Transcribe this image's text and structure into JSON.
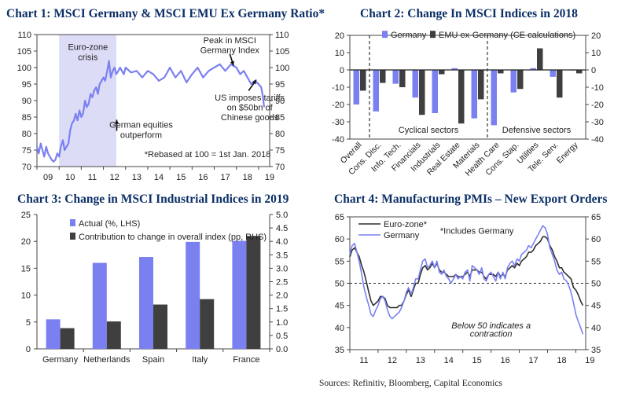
{
  "titles": {
    "c1": "Chart 1: MSCI Germany & MSCI EMU Ex Germany Ratio*",
    "c2": "Chart 2: Change In MSCI Indices in 2018",
    "c3": "Chart 3: Change in MSCI Industrial Indices in 2019",
    "c4": "Chart 4: Manufacturing PMIs – New Export Orders"
  },
  "sources": "Sources: Refinitiv, Bloomberg, Capital Economics",
  "colors": {
    "blue": "#7b80f0",
    "dark": "#3f3f3f",
    "line_blue": "#7b80f0",
    "line_dark": "#2f2f2f",
    "shade": "#dcdcf7",
    "title": "#0b2f66"
  },
  "chart_data": [
    {
      "id": "c1",
      "type": "line",
      "title": "Chart 1: MSCI Germany & MSCI EMU Ex Germany Ratio*",
      "xlim": [
        9,
        19.5
      ],
      "ylim": [
        70,
        110
      ],
      "x_ticks": [
        "09",
        "10",
        "11",
        "12",
        "13",
        "14",
        "15",
        "16",
        "17",
        "18",
        "19"
      ],
      "y_ticks": [
        70,
        75,
        80,
        85,
        90,
        95,
        100,
        105,
        110
      ],
      "shaded_region": {
        "from": 10,
        "to": 12.58
      },
      "series": [
        {
          "x": [
            9.0,
            9.08,
            9.17,
            9.25,
            9.33,
            9.42,
            9.5,
            9.58,
            9.67,
            9.75,
            9.83,
            9.92,
            10.0,
            10.08,
            10.17,
            10.25,
            10.33,
            10.42,
            10.5,
            10.58,
            10.67,
            10.75,
            10.83,
            10.92,
            11.0,
            11.08,
            11.17,
            11.25,
            11.33,
            11.42,
            11.5,
            11.58,
            11.67,
            11.75,
            11.83,
            11.92,
            12.0,
            12.08,
            12.17,
            12.25,
            12.33,
            12.42,
            12.5,
            12.58,
            12.67,
            12.75,
            12.83,
            12.92,
            13.0,
            13.25,
            13.5,
            13.75,
            14.0,
            14.25,
            14.5,
            14.75,
            15.0,
            15.25,
            15.5,
            15.75,
            16.0,
            16.25,
            16.5,
            16.75,
            17.0,
            17.25,
            17.5,
            17.75,
            18.0,
            18.17,
            18.33,
            18.5,
            18.67,
            18.83,
            19.0,
            19.12,
            19.2,
            19.25
          ],
          "values": [
            76,
            74,
            77,
            75,
            73,
            76,
            74,
            73,
            72,
            71.5,
            72,
            74,
            73,
            76,
            78,
            75,
            76,
            77,
            81,
            83,
            84,
            86,
            84,
            87,
            85,
            86,
            90,
            88,
            89,
            92,
            91,
            93,
            94,
            92,
            95,
            96,
            97,
            96,
            99,
            102,
            97,
            99,
            100,
            98,
            99,
            100,
            99,
            98,
            100,
            98.5,
            99,
            97,
            99,
            98,
            96,
            97,
            100,
            97,
            99,
            95.5,
            98,
            100,
            97,
            99,
            100,
            101,
            99,
            101,
            100,
            98,
            99,
            97,
            95,
            96,
            95,
            94,
            91,
            88
          ]
        }
      ],
      "annotations": [
        {
          "text": "Euro-zone",
          "x": 11.3,
          "y": 106.3
        },
        {
          "text": "crisis",
          "x": 11.3,
          "y": 103.2
        },
        {
          "text": "Peak in MSCI",
          "x": 17.7,
          "y": 108.3
        },
        {
          "text": "Germany Index",
          "x": 17.7,
          "y": 105.3
        },
        {
          "text": "US imposes tariffs",
          "x": 18.6,
          "y": 91.0
        },
        {
          "text": "on $50bn of",
          "x": 18.6,
          "y": 88.0
        },
        {
          "text": "Chinese goods",
          "x": 18.6,
          "y": 85.0
        },
        {
          "text": "German equities",
          "x": 13.7,
          "y": 82.7
        },
        {
          "text": "outperform",
          "x": 13.7,
          "y": 79.7
        },
        {
          "text": "*Rebased at 100 = 1st Jan. 2018",
          "x": 16.7,
          "y": 73.8
        }
      ],
      "arrows": [
        {
          "from": [
            17.7,
            104.2
          ],
          "to": [
            17.87,
            100.6
          ]
        },
        {
          "from": [
            18.55,
            93.0
          ],
          "to": [
            18.9,
            96.3
          ]
        },
        {
          "from": [
            12.6,
            80.8
          ],
          "to": [
            12.6,
            84.2
          ]
        }
      ]
    },
    {
      "id": "c2",
      "type": "bar",
      "title": "Chart 2: Change In MSCI Indices in 2018",
      "categories": [
        "Overall",
        "Cons. Disc.",
        "Info. Tech.",
        "Financials",
        "Industrials",
        "Real Estate",
        "Materials",
        "Health Care",
        "Cons. Stap.",
        "Utilities",
        "Tele. Serv.",
        "Energy"
      ],
      "series": [
        {
          "name": "Germany",
          "values": [
            -20,
            -24,
            -8,
            -16,
            -25,
            1,
            -28,
            -32,
            -13,
            1,
            -4,
            0
          ]
        },
        {
          "name": "EMU ex-Germany (CE calculations)",
          "values": [
            -12,
            -7.5,
            -10,
            -26,
            -2.5,
            -31,
            -17,
            -2,
            -11,
            12.5,
            -16,
            -2
          ]
        }
      ],
      "ylim": [
        -40,
        20
      ],
      "y_ticks": [
        -40,
        -30,
        -20,
        -10,
        0,
        10,
        20
      ],
      "group_labels": [
        "Cyclical sectors",
        "Defensive sectors"
      ],
      "dividers_after_index": [
        0,
        6
      ]
    },
    {
      "id": "c3",
      "type": "bar",
      "title": "Chart 3: Change in MSCI Industrial Indices in 2019",
      "categories": [
        "Germany",
        "Netherlands",
        "Spain",
        "Italy",
        "France"
      ],
      "series": [
        {
          "name": "Actual (%, LHS)",
          "values": [
            5.5,
            16,
            17.1,
            19.9,
            20.1
          ],
          "axis": "left"
        },
        {
          "name": "Contribution to change in overall index (pp, RHS)",
          "values": [
            0.77,
            1.02,
            1.65,
            1.85,
            4.2
          ],
          "axis": "right"
        }
      ],
      "ylim_left": [
        0,
        25
      ],
      "ylim_right": [
        0,
        5
      ],
      "y_ticks_left": [
        0,
        5,
        10,
        15,
        20,
        25
      ],
      "y_ticks_right": [
        "0.0",
        "0.5",
        "1.0",
        "1.5",
        "2.0",
        "2.5",
        "3.0",
        "3.5",
        "4.0",
        "4.5",
        "5.0"
      ]
    },
    {
      "id": "c4",
      "type": "line",
      "title": "Chart 4: Manufacturing PMIs – New Export Orders",
      "xlim": [
        11,
        19.35
      ],
      "ylim": [
        35,
        65
      ],
      "x_ticks": [
        "11",
        "12",
        "13",
        "14",
        "15",
        "16",
        "17",
        "18",
        "19"
      ],
      "y_ticks": [
        35,
        40,
        45,
        50,
        55,
        60,
        65
      ],
      "reference_line": 50,
      "series": [
        {
          "name": "Euro-zone*",
          "x": [
            11.0,
            11.08,
            11.17,
            11.25,
            11.33,
            11.42,
            11.5,
            11.58,
            11.67,
            11.75,
            11.83,
            11.92,
            12.0,
            12.08,
            12.17,
            12.25,
            12.33,
            12.42,
            12.5,
            12.58,
            12.67,
            12.75,
            12.83,
            12.92,
            13.0,
            13.08,
            13.17,
            13.25,
            13.33,
            13.42,
            13.5,
            13.58,
            13.67,
            13.75,
            13.83,
            13.92,
            14.0,
            14.08,
            14.17,
            14.25,
            14.33,
            14.42,
            14.5,
            14.58,
            14.67,
            14.75,
            14.83,
            14.92,
            15.0,
            15.08,
            15.17,
            15.25,
            15.33,
            15.42,
            15.5,
            15.58,
            15.67,
            15.75,
            15.83,
            15.92,
            16.0,
            16.08,
            16.17,
            16.25,
            16.33,
            16.42,
            16.5,
            16.58,
            16.67,
            16.75,
            16.83,
            16.92,
            17.0,
            17.08,
            17.17,
            17.25,
            17.33,
            17.42,
            17.5,
            17.58,
            17.67,
            17.75,
            17.83,
            17.92,
            18.0,
            18.08,
            18.17,
            18.25,
            18.33,
            18.42,
            18.5,
            18.58,
            18.67,
            18.75,
            18.83,
            18.92,
            19.0,
            19.08,
            19.17,
            19.25
          ],
          "values": [
            56,
            57.5,
            58,
            57,
            56,
            54,
            52.5,
            50.5,
            48,
            46,
            45,
            45.5,
            46,
            47,
            47,
            46.5,
            45,
            44.5,
            44.5,
            44.5,
            44.5,
            45,
            45,
            46,
            47.5,
            48.5,
            47,
            48.5,
            50,
            50,
            52,
            53.5,
            54,
            53,
            53.5,
            54.5,
            53.5,
            54.5,
            53,
            52.5,
            52.5,
            52,
            51.5,
            51.5,
            51.5,
            52,
            51.5,
            51.5,
            51.5,
            52,
            52.5,
            51.5,
            53,
            53,
            53,
            52.5,
            52.5,
            51.5,
            51,
            52,
            52,
            52,
            51.5,
            52.5,
            51.5,
            52,
            51.5,
            53,
            53.5,
            54,
            53.5,
            54.5,
            54,
            55,
            55.5,
            56,
            57,
            57,
            57.5,
            58.5,
            59,
            59.5,
            60.5,
            60.5,
            60,
            58.5,
            57.5,
            56,
            55,
            53.5,
            53.5,
            52.5,
            52,
            51.5,
            51,
            49,
            48.5,
            47.5,
            46,
            45
          ]
        },
        {
          "name": "Germany",
          "x": [
            11.0,
            11.08,
            11.17,
            11.25,
            11.33,
            11.42,
            11.5,
            11.58,
            11.67,
            11.75,
            11.83,
            11.92,
            12.0,
            12.08,
            12.17,
            12.25,
            12.33,
            12.42,
            12.5,
            12.58,
            12.67,
            12.75,
            12.83,
            12.92,
            13.0,
            13.08,
            13.17,
            13.25,
            13.33,
            13.42,
            13.5,
            13.58,
            13.67,
            13.75,
            13.83,
            13.92,
            14.0,
            14.08,
            14.17,
            14.25,
            14.33,
            14.42,
            14.5,
            14.58,
            14.67,
            14.75,
            14.83,
            14.92,
            15.0,
            15.08,
            15.17,
            15.25,
            15.33,
            15.42,
            15.5,
            15.58,
            15.67,
            15.75,
            15.83,
            15.92,
            16.0,
            16.08,
            16.17,
            16.25,
            16.33,
            16.42,
            16.5,
            16.58,
            16.67,
            16.75,
            16.83,
            16.92,
            17.0,
            17.08,
            17.17,
            17.25,
            17.33,
            17.42,
            17.5,
            17.58,
            17.67,
            17.75,
            17.83,
            17.92,
            18.0,
            18.08,
            18.17,
            18.25,
            18.33,
            18.42,
            18.5,
            18.58,
            18.67,
            18.75,
            18.83,
            18.92,
            19.0,
            19.08,
            19.17,
            19.25
          ],
          "values": [
            56.5,
            58.5,
            59,
            57,
            55,
            52,
            49,
            47,
            45,
            43,
            42.5,
            44,
            45,
            46.5,
            47,
            46,
            44,
            42.5,
            42,
            42.5,
            43,
            43.5,
            44.5,
            46,
            48,
            49,
            47.5,
            49,
            51,
            51,
            53,
            55,
            55.5,
            53.5,
            54,
            55,
            53.5,
            55,
            52.5,
            52,
            53,
            51.5,
            51,
            50,
            51,
            52,
            51,
            51.5,
            51,
            52.5,
            53,
            50.5,
            54,
            53.5,
            53,
            52,
            53.5,
            51,
            50.5,
            52,
            52.5,
            51.5,
            50.5,
            52.5,
            51,
            52.5,
            51,
            53.5,
            54.5,
            55,
            54,
            55.5,
            55,
            56.5,
            57,
            57.5,
            58.5,
            58,
            59,
            60,
            61,
            62,
            63,
            62.5,
            61,
            58,
            56.5,
            55,
            53,
            52,
            52.5,
            51,
            50.5,
            49.5,
            48,
            45.5,
            43,
            41.5,
            40,
            38.5
          ]
        }
      ],
      "annotations": [
        {
          "text": "*Includes Germany",
          "x": 15.5,
          "y": 61.9
        },
        {
          "text": "Below 50 indicates a",
          "x": 16.0,
          "y": 40.5
        },
        {
          "text": "contraction",
          "x": 16.0,
          "y": 38.6
        }
      ]
    }
  ]
}
